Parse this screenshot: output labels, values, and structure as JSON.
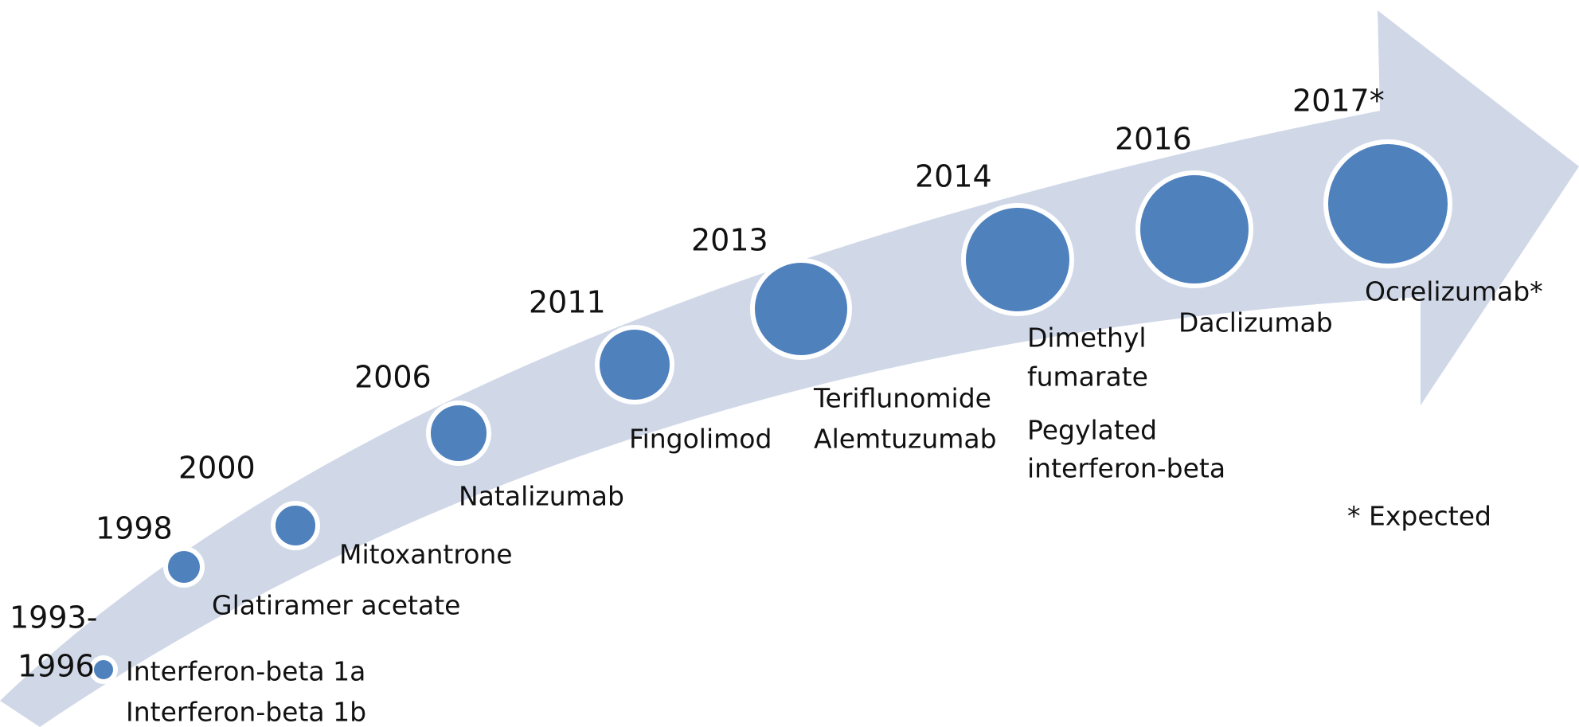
{
  "milestones": [
    {
      "year": [
        "1993-",
        "1996"
      ],
      "drugs": [
        "Interferon-beta 1a",
        "Interferon-beta 1b"
      ]
    },
    {
      "year": [
        "1998"
      ],
      "drugs": [
        "Glatiramer acetate"
      ]
    },
    {
      "year": [
        "2000"
      ],
      "drugs": [
        "Mitoxantrone"
      ]
    },
    {
      "year": [
        "2006"
      ],
      "drugs": [
        "Natalizumab"
      ]
    },
    {
      "year": [
        "2011"
      ],
      "drugs": [
        "Fingolimod"
      ]
    },
    {
      "year": [
        "2013"
      ],
      "drugs": [
        "Teriflunomide",
        "Alemtuzumab"
      ]
    },
    {
      "year": [
        "2014"
      ],
      "drugs": [
        "Dimethyl",
        "fumarate",
        "Pegylated",
        "interferon-beta"
      ]
    },
    {
      "year": [
        "2016"
      ],
      "drugs": [
        "Daclizumab"
      ]
    },
    {
      "year": [
        "2017*"
      ],
      "drugs": [
        "Ocrelizumab*"
      ]
    }
  ],
  "note": "* Expected"
}
